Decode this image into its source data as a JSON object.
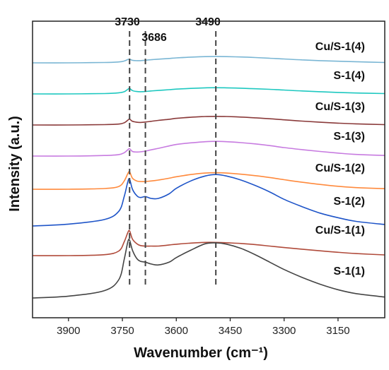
{
  "chart_data": {
    "type": "line",
    "title": "",
    "xlabel": "Wavenumber (cm⁻¹)",
    "ylabel": "Intensity (a.u.)",
    "xlim": [
      4000,
      3020
    ],
    "x_reversed": true,
    "x_ticks": [
      3900,
      3750,
      3600,
      3450,
      3300,
      3150
    ],
    "y_ticks_shown": false,
    "y_unit": "arbitrary (vertically offset, stacked spectra)",
    "grid": false,
    "legend": "none (series labeled directly at right)",
    "reference_lines": [
      {
        "x": 3730,
        "label": "3730"
      },
      {
        "x": 3686,
        "label": "3686"
      },
      {
        "x": 3490,
        "label": "3490"
      }
    ],
    "x": [
      4000,
      3900,
      3800,
      3760,
      3745,
      3735,
      3730,
      3722,
      3710,
      3700,
      3686,
      3670,
      3650,
      3620,
      3600,
      3560,
      3520,
      3490,
      3460,
      3420,
      3380,
      3340,
      3300,
      3250,
      3200,
      3150,
      3100,
      3020
    ],
    "series": [
      {
        "name": "Cu/S-1(4)",
        "color": "#7ab6d4",
        "values": [
          0.0,
          0.0,
          0.02,
          0.05,
          0.1,
          0.18,
          0.2,
          0.14,
          0.12,
          0.12,
          0.14,
          0.17,
          0.2,
          0.24,
          0.27,
          0.31,
          0.34,
          0.35,
          0.34,
          0.32,
          0.29,
          0.25,
          0.21,
          0.16,
          0.12,
          0.09,
          0.06,
          0.02
        ]
      },
      {
        "name": "S-1(4)",
        "color": "#1ec8c0",
        "values": [
          0.0,
          0.0,
          0.02,
          0.06,
          0.12,
          0.25,
          0.3,
          0.18,
          0.13,
          0.12,
          0.13,
          0.16,
          0.19,
          0.23,
          0.26,
          0.3,
          0.33,
          0.34,
          0.33,
          0.31,
          0.28,
          0.25,
          0.21,
          0.16,
          0.12,
          0.08,
          0.05,
          0.02
        ]
      },
      {
        "name": "Cu/S-1(3)",
        "color": "#8a3a3a",
        "values": [
          0.0,
          0.0,
          0.02,
          0.05,
          0.12,
          0.26,
          0.32,
          0.2,
          0.15,
          0.14,
          0.16,
          0.2,
          0.25,
          0.31,
          0.36,
          0.42,
          0.46,
          0.47,
          0.46,
          0.43,
          0.39,
          0.34,
          0.28,
          0.21,
          0.15,
          0.1,
          0.06,
          0.02
        ]
      },
      {
        "name": "S-1(3)",
        "color": "#c77be0",
        "values": [
          0.0,
          0.0,
          0.03,
          0.08,
          0.18,
          0.34,
          0.4,
          0.25,
          0.22,
          0.23,
          0.27,
          0.34,
          0.42,
          0.55,
          0.63,
          0.72,
          0.78,
          0.8,
          0.78,
          0.73,
          0.66,
          0.57,
          0.46,
          0.35,
          0.25,
          0.16,
          0.09,
          0.03
        ]
      },
      {
        "name": "Cu/S-1(2)",
        "color": "#ff8a3d",
        "values": [
          0.0,
          0.0,
          0.04,
          0.15,
          0.45,
          0.85,
          0.95,
          0.6,
          0.45,
          0.42,
          0.42,
          0.45,
          0.5,
          0.6,
          0.68,
          0.8,
          0.88,
          0.9,
          0.88,
          0.82,
          0.74,
          0.64,
          0.52,
          0.38,
          0.26,
          0.16,
          0.09,
          0.03
        ]
      },
      {
        "name": "S-1(2)",
        "color": "#1e54c8",
        "values": [
          0.0,
          0.1,
          0.35,
          0.8,
          1.6,
          2.4,
          2.55,
          2.0,
          1.65,
          1.55,
          1.6,
          1.5,
          1.5,
          1.75,
          2.05,
          2.45,
          2.72,
          2.8,
          2.72,
          2.5,
          2.2,
          1.85,
          1.45,
          1.05,
          0.7,
          0.45,
          0.25,
          0.08
        ]
      },
      {
        "name": "Cu/S-1(1)",
        "color": "#b04a3a",
        "values": [
          0.0,
          0.0,
          0.05,
          0.25,
          0.75,
          1.25,
          1.35,
          0.9,
          0.65,
          0.55,
          0.52,
          0.52,
          0.52,
          0.58,
          0.62,
          0.68,
          0.72,
          0.72,
          0.7,
          0.66,
          0.6,
          0.52,
          0.44,
          0.35,
          0.26,
          0.18,
          0.11,
          0.04
        ]
      },
      {
        "name": "S-1(1)",
        "color": "#444444",
        "values": [
          0.0,
          0.1,
          0.4,
          1.0,
          2.1,
          3.05,
          3.15,
          2.6,
          2.15,
          2.0,
          1.95,
          1.85,
          1.8,
          1.95,
          2.2,
          2.6,
          2.95,
          3.0,
          2.93,
          2.7,
          2.35,
          1.95,
          1.55,
          1.12,
          0.75,
          0.45,
          0.24,
          0.05
        ]
      }
    ]
  }
}
